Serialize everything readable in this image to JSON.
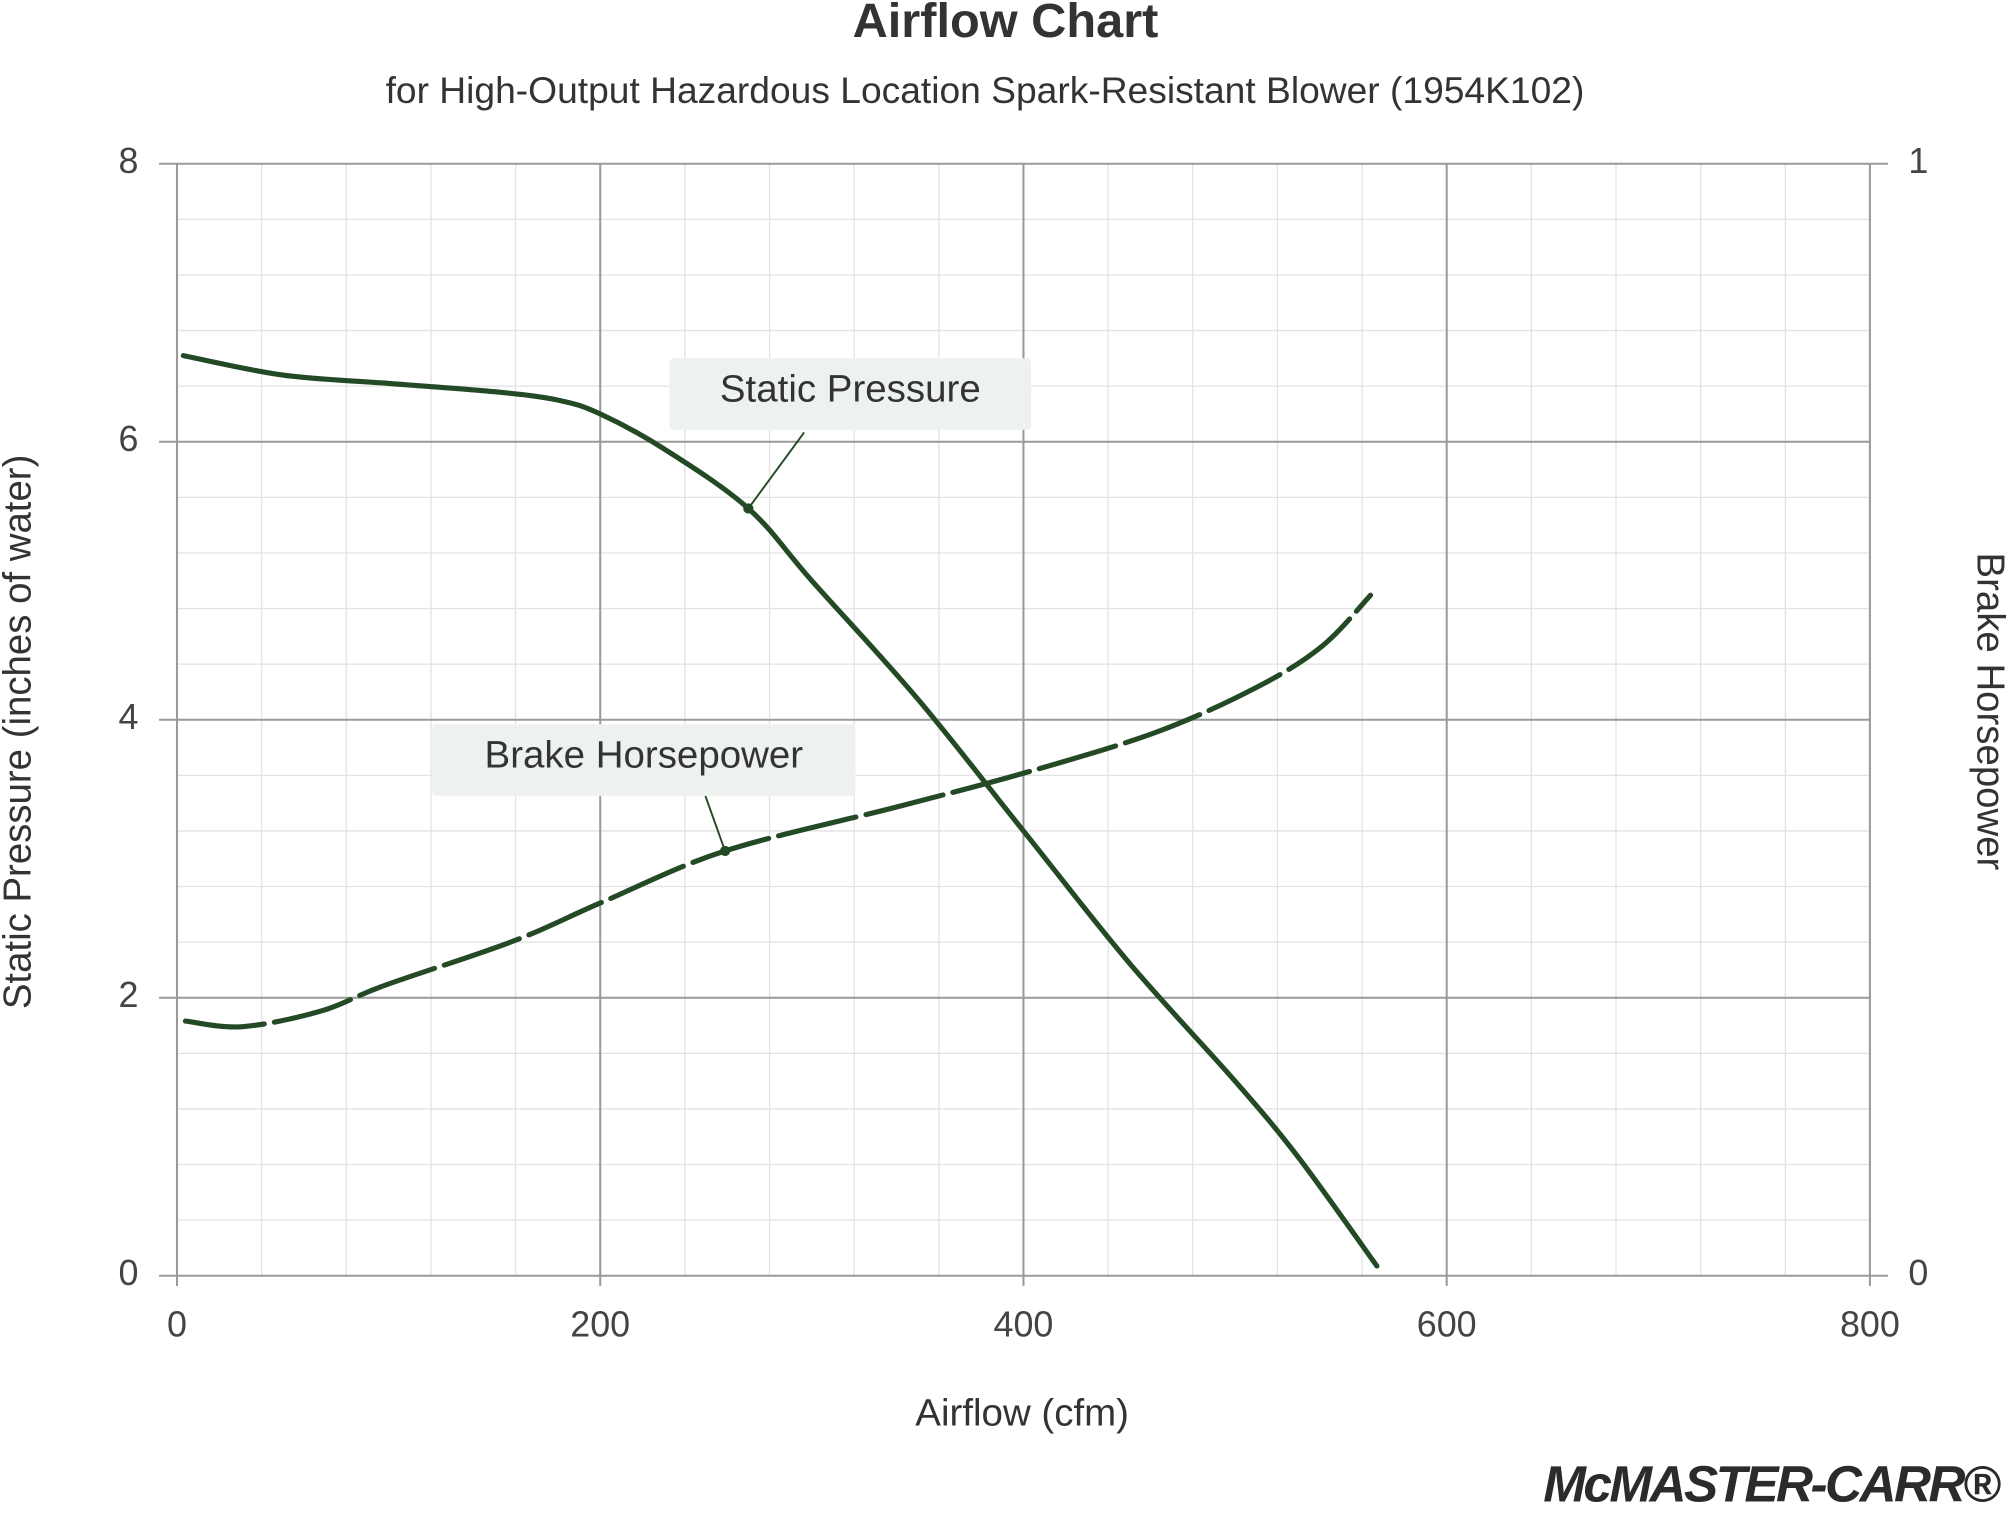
{
  "chart_data": {
    "type": "line",
    "title": "Airflow Chart",
    "subtitle": "for High-Output Hazardous Location Spark-Resistant Blower (1954K102)",
    "x_label": "Airflow (cfm)",
    "y_label": "Static Pressure (inches of water)",
    "y2_label": "Brake Horsepower",
    "xlim": [
      0,
      800
    ],
    "xticks": [
      0,
      200,
      400,
      600,
      800
    ],
    "ylim": [
      0,
      8
    ],
    "yticks": [
      0,
      2,
      4,
      6,
      8
    ],
    "y2lim": [
      0,
      1
    ],
    "y2ticks": [
      0,
      1
    ],
    "grid": true,
    "x_minor_step": 40,
    "y_minor_step": 0.4,
    "series": [
      {
        "name": "Static Pressure",
        "color": "#244a25",
        "dashed": false,
        "x": [
          3,
          50,
          100,
          150,
          180,
          200,
          230,
          270,
          300,
          350,
          400,
          450,
          500,
          530,
          567
        ],
        "values": [
          6.62,
          6.48,
          6.42,
          6.36,
          6.3,
          6.2,
          5.95,
          5.52,
          5.0,
          4.15,
          3.2,
          2.25,
          1.4,
          0.85,
          0.07
        ]
      },
      {
        "name": "Brake Horsepower",
        "color": "#244a25",
        "dashed": true,
        "axis": "y2",
        "x": [
          4,
          31,
          68,
          98,
          159,
          201,
          259,
          341,
          402,
          463,
          510,
          541,
          564
        ],
        "values": [
          0.229,
          0.224,
          0.238,
          0.261,
          0.301,
          0.336,
          0.382,
          0.422,
          0.453,
          0.489,
          0.529,
          0.566,
          0.612
        ]
      }
    ],
    "logo": "McMASTER-CARR®"
  }
}
